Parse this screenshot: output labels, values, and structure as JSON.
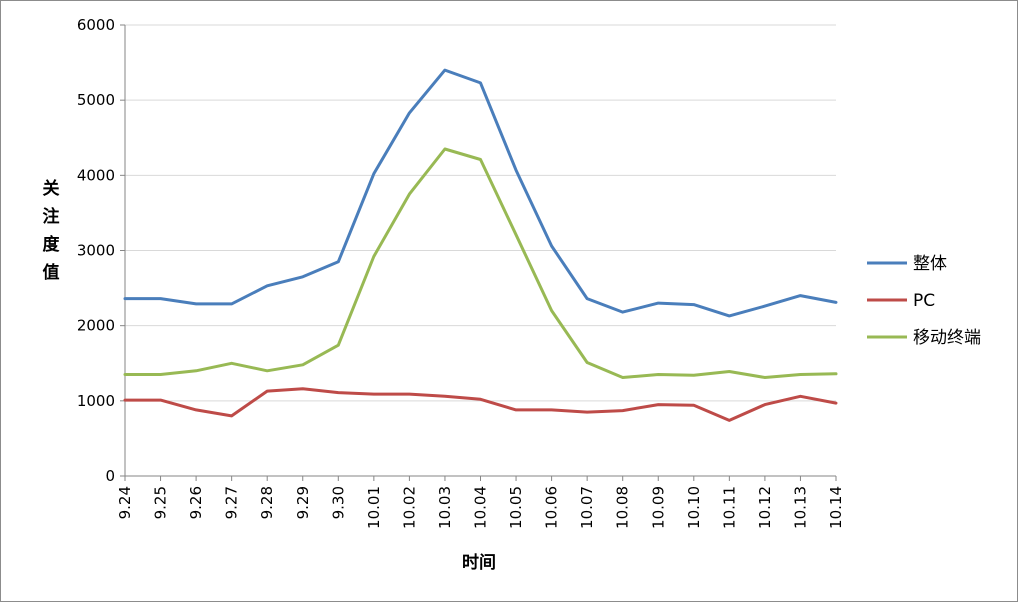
{
  "chart_data": {
    "type": "line",
    "title": "",
    "xlabel": "时间",
    "ylabel": "关注度值",
    "ylim": [
      0,
      6000
    ],
    "yticks": [
      0,
      1000,
      2000,
      3000,
      4000,
      5000,
      6000
    ],
    "grid": true,
    "legend_position": "right",
    "categories": [
      "9.24",
      "9.25",
      "9.26",
      "9.27",
      "9.28",
      "9.29",
      "9.30",
      "10.01",
      "10.02",
      "10.03",
      "10.04",
      "10.05",
      "10.06",
      "10.07",
      "10.08",
      "10.09",
      "10.10",
      "10.11",
      "10.12",
      "10.13",
      "10.14"
    ],
    "series": [
      {
        "name": "整体",
        "color": "#4a7ebb",
        "values": [
          2360,
          2360,
          2290,
          2290,
          2530,
          2650,
          2850,
          4020,
          4830,
          5400,
          5230,
          4070,
          3060,
          2360,
          2180,
          2300,
          2280,
          2130,
          2260,
          2400,
          2310
        ]
      },
      {
        "name": "PC",
        "color": "#be4b48",
        "values": [
          1010,
          1010,
          880,
          800,
          1130,
          1160,
          1110,
          1090,
          1090,
          1060,
          1020,
          880,
          880,
          850,
          870,
          950,
          940,
          740,
          950,
          1060,
          970
        ]
      },
      {
        "name": "移动终端",
        "color": "#98b954",
        "values": [
          1350,
          1350,
          1400,
          1500,
          1400,
          1480,
          1740,
          2920,
          3750,
          4350,
          4210,
          3210,
          2200,
          1510,
          1310,
          1350,
          1340,
          1390,
          1310,
          1350,
          1360
        ]
      }
    ]
  }
}
